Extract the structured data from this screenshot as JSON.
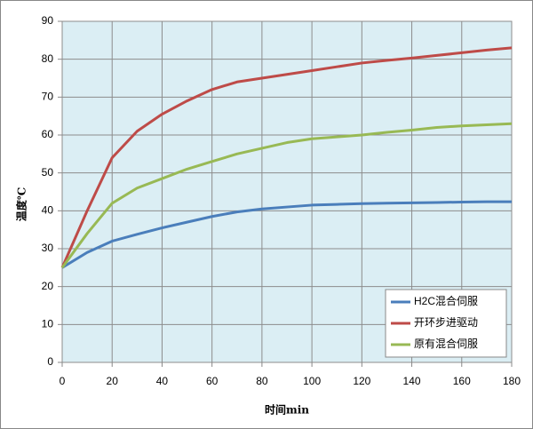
{
  "chart_data": {
    "type": "line",
    "x_label": "时间min",
    "y_label": "温度℃",
    "x": [
      0,
      10,
      20,
      30,
      40,
      50,
      60,
      70,
      80,
      90,
      100,
      110,
      120,
      130,
      140,
      150,
      160,
      170,
      180
    ],
    "series": [
      {
        "name": "H2C混合伺服",
        "color": "#4a7ebb",
        "values": [
          25,
          29,
          32,
          33.8,
          35.5,
          37,
          38.5,
          39.7,
          40.5,
          41,
          41.5,
          41.7,
          41.9,
          42,
          42.1,
          42.2,
          42.3,
          42.4,
          42.4
        ]
      },
      {
        "name": "开环步进驱动",
        "color": "#be4b48",
        "values": [
          25,
          40,
          54,
          61,
          65.5,
          69,
          72,
          74,
          75,
          76,
          77,
          78,
          79,
          79.7,
          80.3,
          81,
          81.7,
          82.4,
          83
        ]
      },
      {
        "name": "原有混合伺服",
        "color": "#98b954",
        "values": [
          25,
          34,
          42,
          46,
          48.5,
          51,
          53,
          55,
          56.5,
          58,
          59,
          59.5,
          60,
          60.7,
          61.3,
          62,
          62.4,
          62.7,
          63
        ]
      }
    ],
    "xlim": [
      0,
      180
    ],
    "xticks": [
      0,
      20,
      40,
      60,
      80,
      100,
      120,
      140,
      160,
      180
    ],
    "ylim": [
      0,
      90
    ],
    "yticks": [
      0,
      10,
      20,
      30,
      40,
      50,
      60,
      70,
      80,
      90
    ],
    "grid": true,
    "legend": "lower right"
  }
}
